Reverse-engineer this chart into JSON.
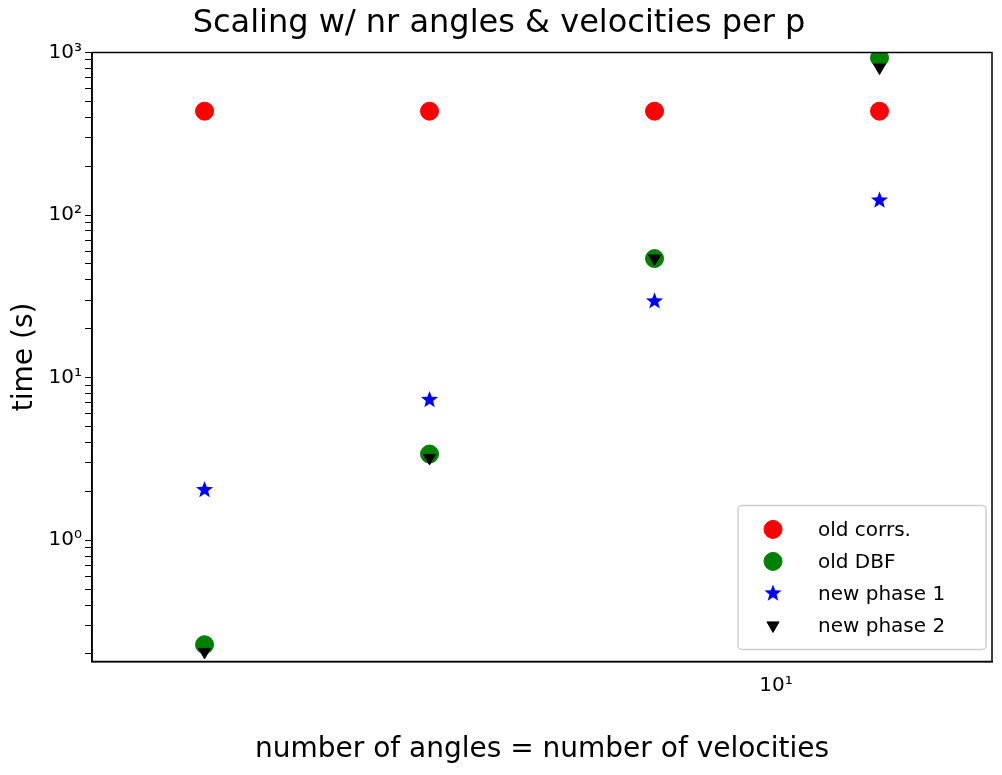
{
  "chart_data": {
    "type": "scatter",
    "title": "Scaling w/ nr angles & velocities per p",
    "xlabel": "number of angles = number of velocities",
    "ylabel": "time (s)",
    "categories": [
      null,
      null,
      null,
      null
    ],
    "annotations": [
      "10¹"
    ],
    "series": [
      {
        "name": "old corrs.",
        "color": "#ff0000",
        "marker": "circle",
        "values": [
          435,
          435,
          435,
          435
        ]
      },
      {
        "name": "old DBF",
        "color": "#008000",
        "marker": "circle",
        "values": [
          0.228,
          3.39,
          54,
          925
        ]
      },
      {
        "name": "new phase 1",
        "color": "#0000ff",
        "marker": "star",
        "values": [
          2.04,
          7.3,
          29.5,
          123
        ]
      },
      {
        "name": "new phase 2",
        "color": "#000000",
        "marker": "triangle",
        "values": [
          0.206,
          3.21,
          54,
          807
        ]
      }
    ],
    "log": "y",
    "ylim": [
      0.18,
      1000
    ],
    "yticks": [
      {
        "value": 0.2,
        "label": null
      },
      {
        "value": 0.3,
        "label": null
      },
      {
        "value": 0.4,
        "label": null
      },
      {
        "value": 0.5,
        "label": null
      },
      {
        "value": 0.6,
        "label": null
      },
      {
        "value": 0.7,
        "label": null
      },
      {
        "value": 0.8,
        "label": null
      },
      {
        "value": 0.9,
        "label": null
      },
      {
        "value": 1,
        "label": "10⁰"
      },
      {
        "value": 2,
        "label": null
      },
      {
        "value": 3,
        "label": null
      },
      {
        "value": 4,
        "label": null
      },
      {
        "value": 5,
        "label": null
      },
      {
        "value": 6,
        "label": null
      },
      {
        "value": 7,
        "label": null
      },
      {
        "value": 8,
        "label": null
      },
      {
        "value": 9,
        "label": null
      },
      {
        "value": 10,
        "label": "10¹"
      },
      {
        "value": 20,
        "label": null
      },
      {
        "value": 30,
        "label": null
      },
      {
        "value": 40,
        "label": null
      },
      {
        "value": 50,
        "label": null
      },
      {
        "value": 60,
        "label": null
      },
      {
        "value": 70,
        "label": null
      },
      {
        "value": 80,
        "label": null
      },
      {
        "value": 90,
        "label": null
      },
      {
        "value": 100,
        "label": "10²"
      },
      {
        "value": 200,
        "label": null
      },
      {
        "value": 300,
        "label": null
      },
      {
        "value": 400,
        "label": null
      },
      {
        "value": 500,
        "label": null
      },
      {
        "value": 600,
        "label": null
      },
      {
        "value": 700,
        "label": null
      },
      {
        "value": 800,
        "label": null
      },
      {
        "value": 900,
        "label": null
      },
      {
        "value": 1000,
        "label": "10³"
      }
    ],
    "grid": false,
    "legend": "bottom right"
  }
}
